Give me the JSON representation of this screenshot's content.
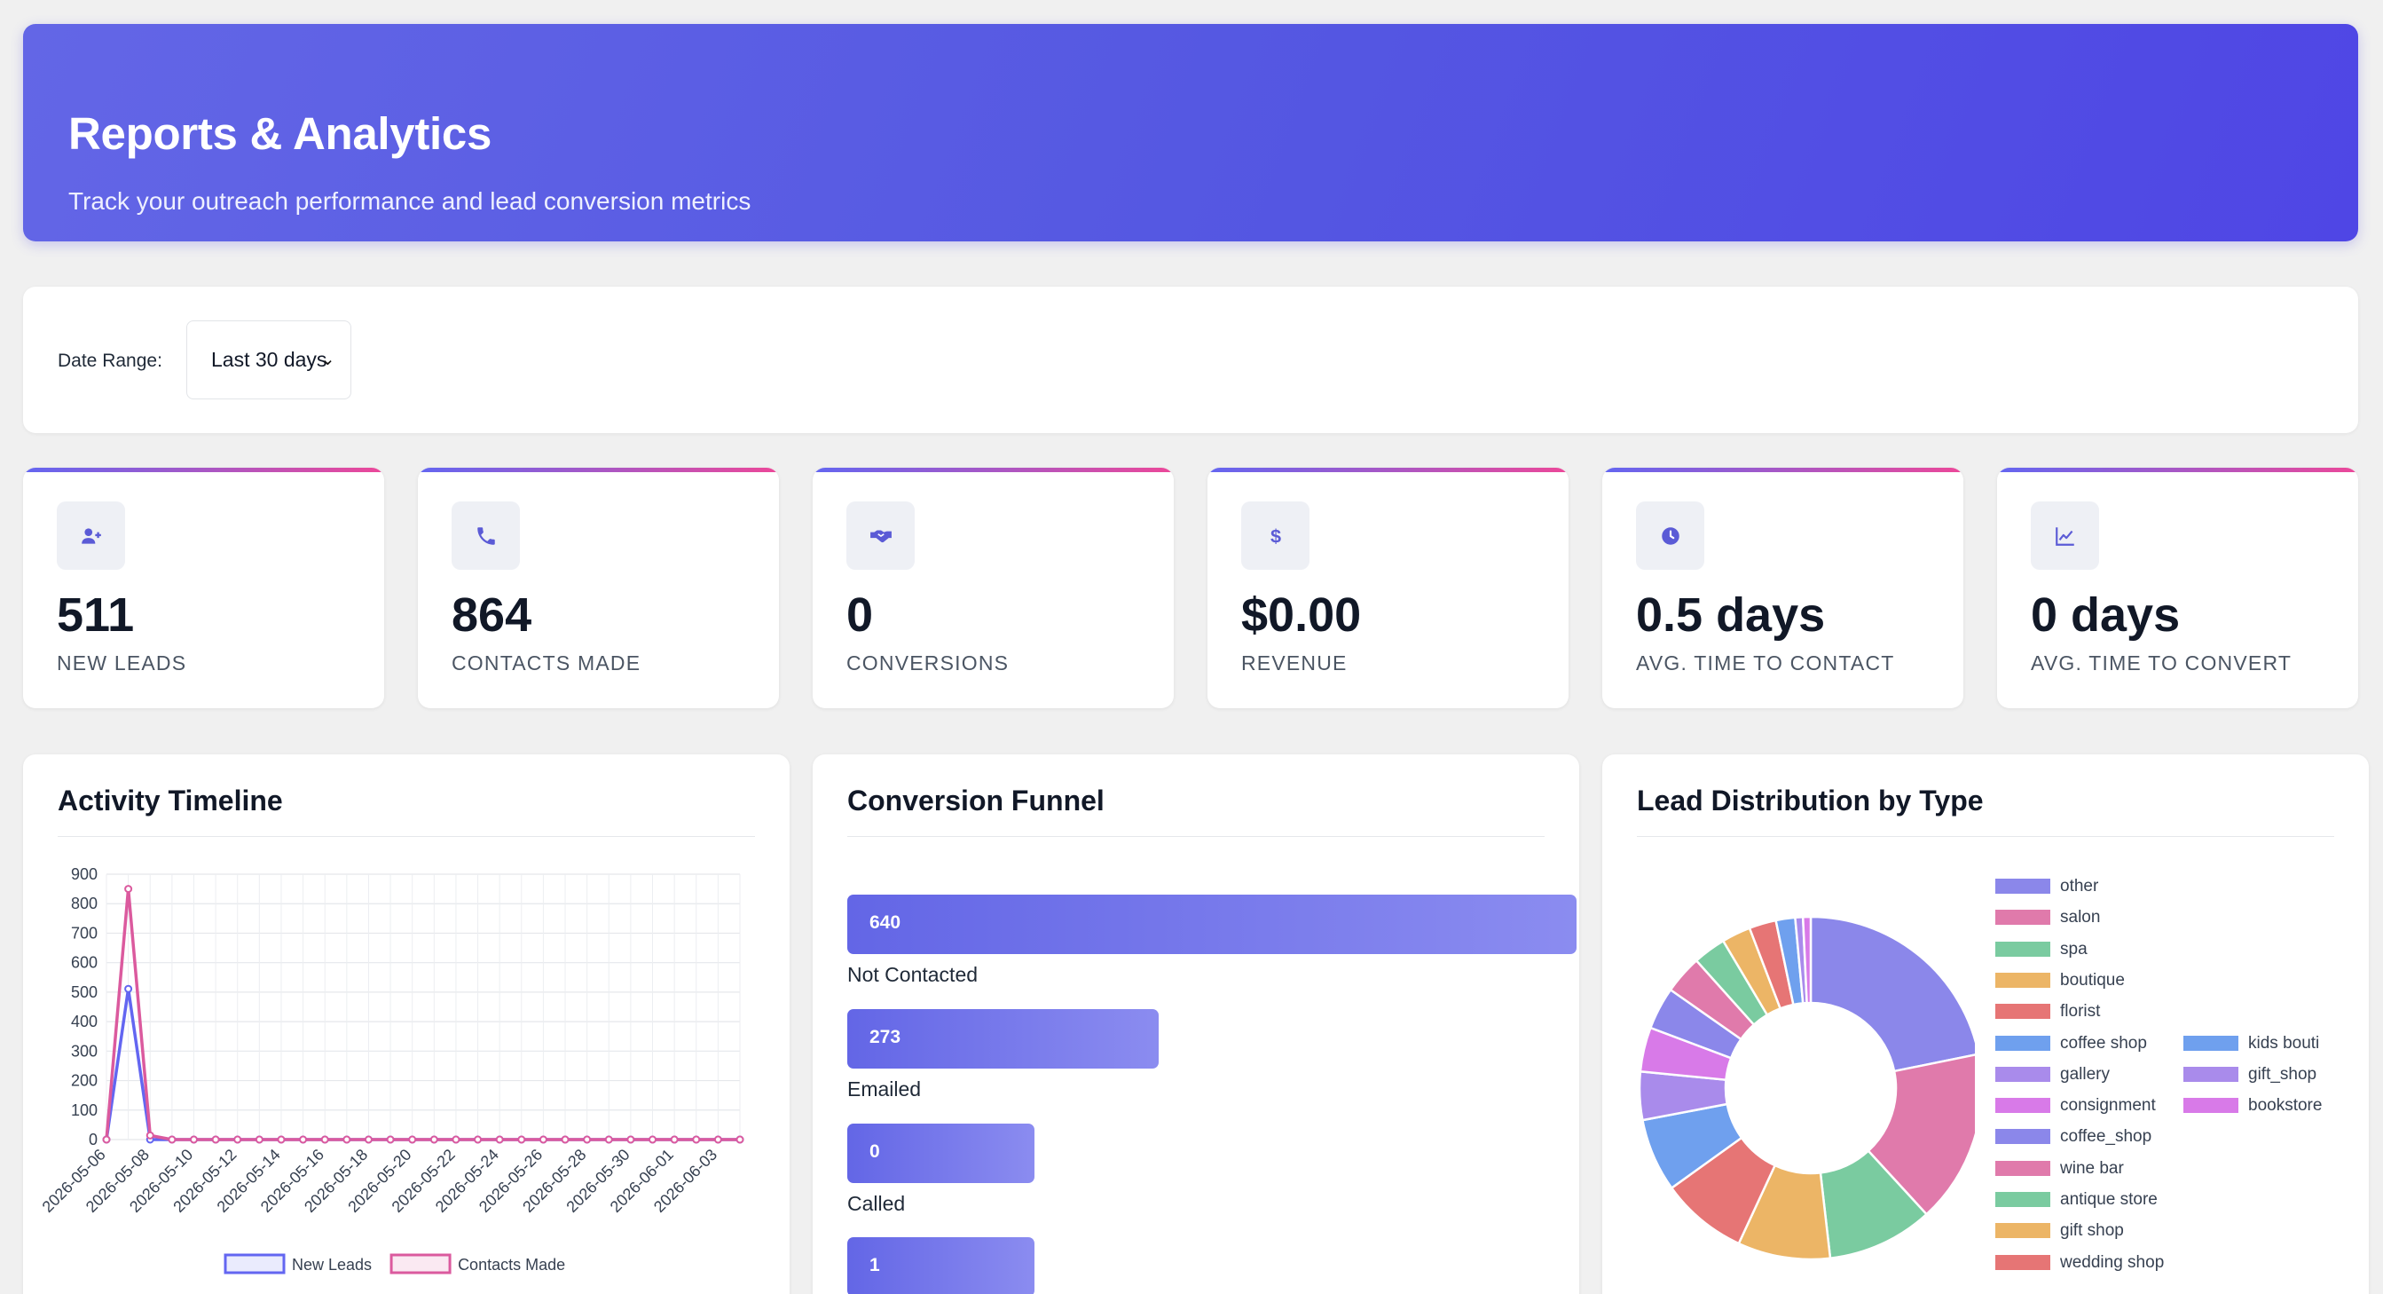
{
  "header": {
    "title": "Reports & Analytics",
    "subtitle": "Track your outreach performance and lead conversion metrics"
  },
  "filters": {
    "date_range_label": "Date Range:",
    "date_range_value": "Last 30 days"
  },
  "stats": [
    {
      "icon": "user-plus-icon",
      "value": "511",
      "label": "NEW LEADS"
    },
    {
      "icon": "phone-icon",
      "value": "864",
      "label": "CONTACTS MADE"
    },
    {
      "icon": "handshake-icon",
      "value": "0",
      "label": "CONVERSIONS"
    },
    {
      "icon": "dollar-icon",
      "value": "$0.00",
      "label": "REVENUE"
    },
    {
      "icon": "clock-icon",
      "value": "0.5 days",
      "label": "AVG. TIME TO CONTACT"
    },
    {
      "icon": "chart-line-icon",
      "value": "0 days",
      "label": "AVG. TIME TO CONVERT"
    }
  ],
  "panels": {
    "timeline_title": "Activity Timeline",
    "funnel_title": "Conversion Funnel",
    "distribution_title": "Lead Distribution by Type"
  },
  "funnel": [
    {
      "value": "640",
      "label": "Not Contacted",
      "count": 640
    },
    {
      "value": "273",
      "label": "Emailed",
      "count": 273
    },
    {
      "value": "0",
      "label": "Called",
      "count": 0
    },
    {
      "value": "1",
      "label": "",
      "count": 1
    }
  ],
  "chart_data": [
    {
      "type": "line",
      "title": "Activity Timeline",
      "x": [
        "2026-05-06",
        "2026-05-07",
        "2026-05-08",
        "2026-05-09",
        "2026-05-10",
        "2026-05-11",
        "2026-05-12",
        "2026-05-13",
        "2026-05-14",
        "2026-05-15",
        "2026-05-16",
        "2026-05-17",
        "2026-05-18",
        "2026-05-19",
        "2026-05-20",
        "2026-05-21",
        "2026-05-22",
        "2026-05-23",
        "2026-05-24",
        "2026-05-25",
        "2026-05-26",
        "2026-05-27",
        "2026-05-28",
        "2026-05-29",
        "2026-05-30",
        "2026-05-31",
        "2026-06-01",
        "2026-06-02",
        "2026-06-03",
        "2026-06-04"
      ],
      "x_tick_labels": [
        "2026-05-06",
        "2026-05-08",
        "2026-05-10",
        "2026-05-12",
        "2026-05-14",
        "2026-05-16",
        "2026-05-18",
        "2026-05-20",
        "2026-05-22",
        "2026-05-24",
        "2026-05-26",
        "2026-05-28",
        "2026-05-30",
        "2026-06-01",
        "2026-06-03"
      ],
      "y_ticks": [
        "0",
        "100",
        "200",
        "300",
        "400",
        "500",
        "600",
        "700",
        "800",
        "900"
      ],
      "ylim": [
        0,
        900
      ],
      "grid": true,
      "legend_position": "bottom",
      "series": [
        {
          "name": "New Leads",
          "color": "#6366f1",
          "values": [
            0,
            511,
            0,
            0,
            0,
            0,
            0,
            0,
            0,
            0,
            0,
            0,
            0,
            0,
            0,
            0,
            0,
            0,
            0,
            0,
            0,
            0,
            0,
            0,
            0,
            0,
            0,
            0,
            0,
            0
          ]
        },
        {
          "name": "Contacts Made",
          "color": "#db5a9e",
          "values": [
            0,
            850,
            14,
            0,
            0,
            0,
            0,
            0,
            0,
            0,
            0,
            0,
            0,
            0,
            0,
            0,
            0,
            0,
            0,
            0,
            0,
            0,
            0,
            0,
            0,
            0,
            0,
            0,
            0,
            0
          ]
        }
      ]
    },
    {
      "type": "pie",
      "title": "Lead Distribution by Type",
      "legend_position": "right",
      "labels": [
        "other",
        "salon",
        "spa",
        "boutique",
        "florist",
        "coffee shop",
        "gallery",
        "consignment",
        "coffee_shop",
        "wine bar",
        "antique store",
        "gift shop",
        "wedding shop",
        "kids bouti",
        "gift_shop",
        "bookstore"
      ],
      "values": [
        120,
        90,
        55,
        48,
        45,
        38,
        25,
        23,
        22,
        20,
        17,
        15,
        14,
        10,
        4,
        4
      ],
      "colors": [
        "#8b87ea",
        "#e07aab",
        "#7acba0",
        "#ecb566",
        "#e67575",
        "#6fa0ee",
        "#a98beb",
        "#d87ae8",
        "#8b87ea",
        "#e07aab",
        "#7acba0",
        "#ecb566",
        "#e67575",
        "#6fa0ee",
        "#a98beb",
        "#d87ae8"
      ]
    }
  ]
}
